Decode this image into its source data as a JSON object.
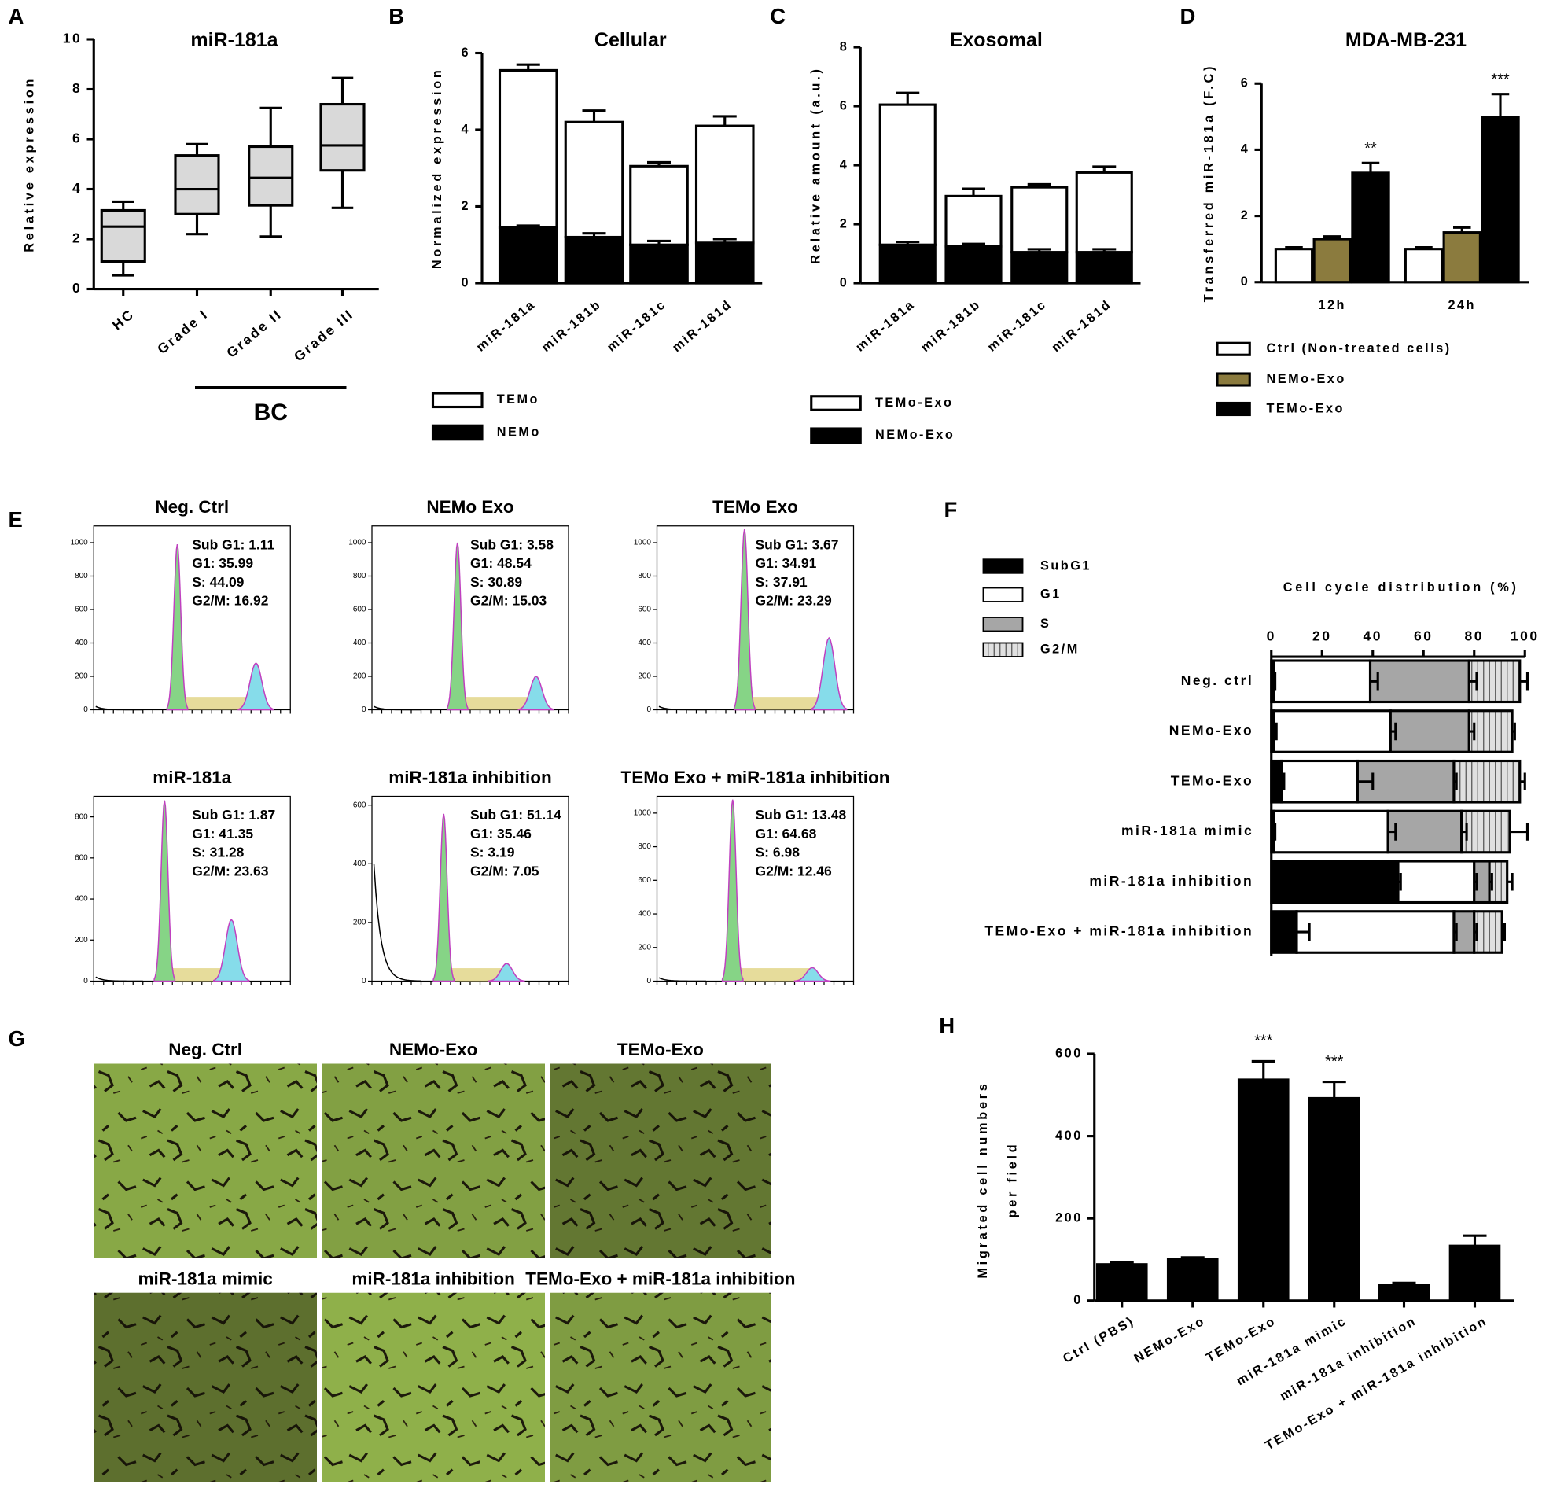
{
  "chart_data": [
    {
      "panel": "A",
      "type": "box",
      "title": "miR-181a",
      "y_label": "Relative expression",
      "categories": [
        "HC",
        "Grade I",
        "Grade II",
        "Grade III"
      ],
      "group_label": "BC",
      "min": [
        0.55,
        2.2,
        2.1,
        3.25
      ],
      "q1": [
        1.1,
        3.0,
        3.35,
        4.75
      ],
      "median": [
        2.5,
        4.0,
        4.45,
        5.75
      ],
      "q3": [
        3.15,
        5.35,
        5.7,
        7.4
      ],
      "max": [
        3.5,
        5.8,
        7.25,
        8.45
      ],
      "color": "#d9d9d9",
      "ylim": [
        0,
        10
      ],
      "yticks": [
        0,
        2,
        4,
        6,
        8,
        10
      ]
    },
    {
      "panel": "B",
      "type": "stacked-bar",
      "title": "Cellular",
      "y_label": "Normalized expression",
      "categories": [
        "miR-181a",
        "miR-181b",
        "miR-181c",
        "miR-181d"
      ],
      "series": [
        {
          "name": "NEMo",
          "color": "#000000",
          "values": [
            1.45,
            1.2,
            1.0,
            1.05
          ],
          "errors": [
            0.05,
            0.1,
            0.1,
            0.1
          ]
        },
        {
          "name": "TEMo",
          "color": "#ffffff",
          "values": [
            4.1,
            3.0,
            2.05,
            3.05
          ],
          "errors": [
            0.15,
            0.3,
            0.1,
            0.25
          ]
        }
      ],
      "ylim": [
        0,
        6
      ],
      "yticks": [
        0,
        2,
        4,
        6
      ]
    },
    {
      "panel": "C",
      "type": "stacked-bar",
      "title": "Exosomal",
      "y_label": "Relative amount (a.u.)",
      "categories": [
        "miR-181a",
        "miR-181b",
        "miR-181c",
        "miR-181d"
      ],
      "series": [
        {
          "name": "NEMo-Exo",
          "color": "#000000",
          "values": [
            1.3,
            1.25,
            1.05,
            1.05
          ],
          "errors": [
            0.1,
            0.08,
            0.1,
            0.1
          ]
        },
        {
          "name": "TEMo-Exo",
          "color": "#ffffff",
          "values": [
            4.75,
            1.7,
            2.2,
            2.7
          ],
          "errors": [
            0.4,
            0.25,
            0.1,
            0.2
          ]
        }
      ],
      "ylim": [
        0,
        8
      ],
      "yticks": [
        0,
        2,
        4,
        6,
        8
      ]
    },
    {
      "panel": "D",
      "type": "grouped-bar",
      "title": "MDA-MB-231",
      "y_label": "Transferred miR-181a (F.C)",
      "categories": [
        "12h",
        "24h"
      ],
      "series": [
        {
          "name": "Ctrl (Non-treated cells)",
          "color": "#ffffff",
          "values": [
            1.0,
            1.0
          ],
          "errors": [
            0.05,
            0.05
          ]
        },
        {
          "name": "NEMo-Exo",
          "color": "#8b7b3e",
          "values": [
            1.3,
            1.5
          ],
          "errors": [
            0.08,
            0.15
          ]
        },
        {
          "name": "TEMo-Exo",
          "color": "#000000",
          "values": [
            3.3,
            4.98
          ],
          "errors": [
            0.3,
            0.7
          ]
        }
      ],
      "annotations": [
        {
          "series": 2,
          "index": 0,
          "text": "**"
        },
        {
          "series": 2,
          "index": 1,
          "text": "***"
        }
      ],
      "ylim": [
        0,
        6
      ],
      "yticks": [
        0,
        2,
        4,
        6
      ]
    },
    {
      "panel": "E",
      "type": "cell-cycle-histograms",
      "panels": [
        {
          "title": "Neg. Ctrl",
          "stats": [
            "Sub G1: 1.11",
            "G1: 35.99",
            "S: 44.09",
            "G2/M: 16.92"
          ],
          "ylim": [
            0,
            1100
          ],
          "yticks": [
            0,
            200,
            400,
            600,
            800,
            1000
          ],
          "subg1_peak": 20,
          "g1_peak": 990,
          "g2m_peak": 280
        },
        {
          "title": "NEMo Exo",
          "stats": [
            "Sub G1: 3.58",
            "G1: 48.54",
            "S: 30.89",
            "G2/M: 15.03"
          ],
          "ylim": [
            0,
            1100
          ],
          "yticks": [
            0,
            200,
            400,
            600,
            800,
            1000
          ],
          "subg1_peak": 20,
          "g1_peak": 1000,
          "g2m_peak": 200
        },
        {
          "title": "TEMo Exo",
          "stats": [
            "Sub G1: 3.67",
            "G1: 34.91",
            "S: 37.91",
            "G2/M: 23.29"
          ],
          "ylim": [
            0,
            1100
          ],
          "yticks": [
            0,
            200,
            400,
            600,
            800,
            1000
          ],
          "subg1_peak": 20,
          "g1_peak": 1080,
          "g2m_peak": 430
        },
        {
          "title": "miR-181a",
          "stats": [
            "Sub G1: 1.87",
            "G1: 41.35",
            "S: 31.28",
            "G2/M: 23.63"
          ],
          "ylim": [
            0,
            900
          ],
          "yticks": [
            0,
            200,
            400,
            600,
            800
          ],
          "subg1_peak": 20,
          "g1_peak": 880,
          "g2m_peak": 300
        },
        {
          "title": "miR-181a inhibition",
          "stats": [
            "Sub G1: 51.14",
            "G1: 35.46",
            "S: 3.19",
            "G2/M: 7.05"
          ],
          "ylim": [
            0,
            630
          ],
          "yticks": [
            0,
            200,
            400,
            600
          ],
          "subg1_peak": 400,
          "g1_peak": 570,
          "g2m_peak": 60
        },
        {
          "title": "TEMo Exo + miR-181a inhibition",
          "stats": [
            "Sub G1: 13.48",
            "G1: 64.68",
            "S: 6.98",
            "G2/M: 12.46"
          ],
          "ylim": [
            0,
            1100
          ],
          "yticks": [
            0,
            200,
            400,
            600,
            800,
            1000
          ],
          "subg1_peak": 20,
          "g1_peak": 1080,
          "g2m_peak": 80
        }
      ]
    },
    {
      "panel": "F",
      "type": "stacked-barh",
      "x_label": "Cell cycle distribution (%)",
      "categories": [
        "Neg. ctrl",
        "NEMo-Exo",
        "TEMo-Exo",
        "miR-181a mimic",
        "miR-181a inhibition",
        "TEMo-Exo + miR-181a inhibition"
      ],
      "series": [
        {
          "name": "SubG1",
          "color": "#000000",
          "values": [
            1,
            1,
            4,
            1,
            50,
            10
          ],
          "errors": [
            0.5,
            1,
            1,
            0.5,
            1,
            5
          ]
        },
        {
          "name": "G1",
          "color": "#ffffff",
          "values": [
            38,
            46,
            30,
            45,
            30,
            62
          ],
          "errors": [
            3,
            2,
            6,
            3,
            1,
            1
          ]
        },
        {
          "name": "S",
          "color": "#a6a6a6",
          "values": [
            39,
            31,
            38,
            29,
            6,
            8
          ],
          "errors": [
            3,
            2,
            1,
            2,
            1,
            1
          ]
        },
        {
          "name": "G2/M",
          "color": "#e0e0e0",
          "hatch": true,
          "values": [
            20,
            17,
            26,
            19,
            7,
            11
          ],
          "errors": [
            3,
            1,
            2,
            7,
            2,
            1
          ]
        }
      ],
      "xlim": [
        0,
        100
      ],
      "xticks": [
        0,
        20,
        40,
        60,
        80,
        100
      ]
    },
    {
      "panel": "G",
      "type": "image-grid",
      "images": [
        {
          "title": "Neg. Ctrl"
        },
        {
          "title": "NEMo-Exo"
        },
        {
          "title": "TEMo-Exo"
        },
        {
          "title": "miR-181a mimic"
        },
        {
          "title": "miR-181a inhibition"
        },
        {
          "title": "TEMo-Exo + miR-181a inhibition"
        }
      ]
    },
    {
      "panel": "H",
      "type": "bar",
      "y_label": [
        "Migrated cell numbers",
        "per field"
      ],
      "categories": [
        "Ctrl (PBS)",
        "NEMo-Exo",
        "TEMo-Exo",
        "miR-181a mimic",
        "miR-181a inhibition",
        "TEMo-Exo + miR-181a inhibition"
      ],
      "values": [
        88,
        100,
        537,
        492,
        38,
        133
      ],
      "errors": [
        5,
        5,
        45,
        40,
        5,
        25
      ],
      "color": "#000000",
      "annotations": [
        {
          "index": 2,
          "text": "***"
        },
        {
          "index": 3,
          "text": "***"
        }
      ],
      "ylim": [
        0,
        600
      ],
      "yticks": [
        0,
        200,
        400,
        600
      ]
    }
  ]
}
